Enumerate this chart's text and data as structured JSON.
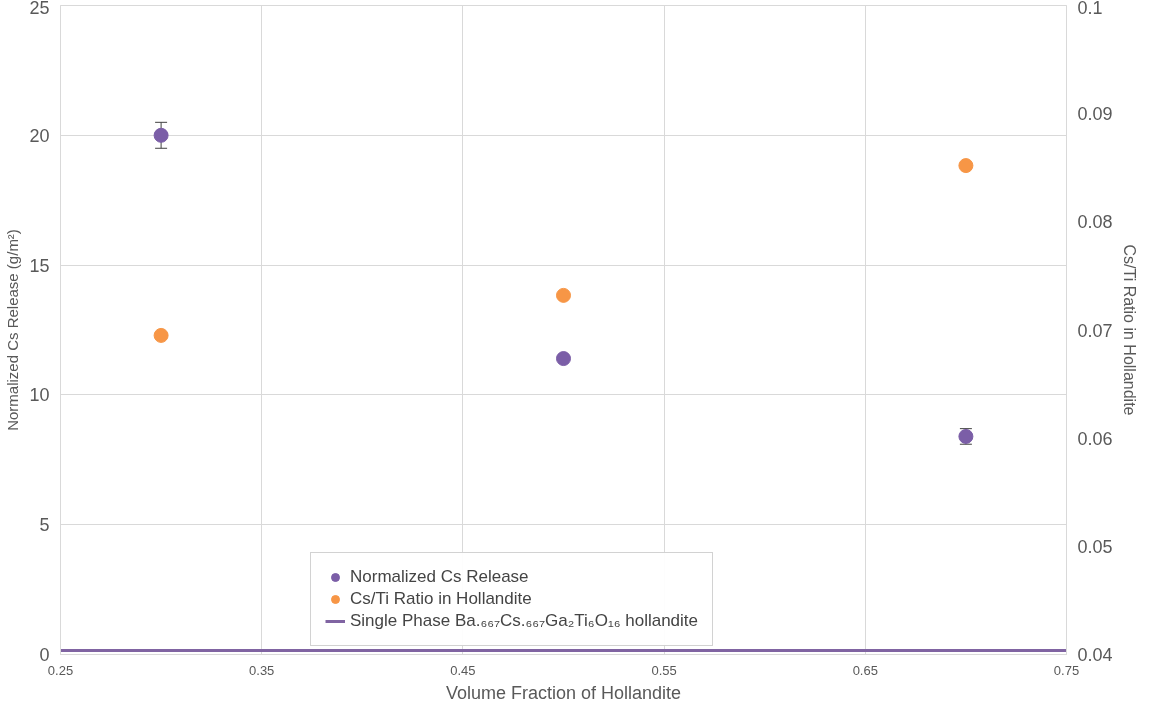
{
  "chart_data": {
    "type": "scatter",
    "xlabel": "Volume Fraction of Hollandite",
    "ylabel": "Normalized Cs Release (g/m²)",
    "y2label": "Cs/Ti Ratio in Hollandite",
    "x": [
      0.3,
      0.5,
      0.7
    ],
    "series": [
      {
        "name": "Normalized Cs Release",
        "color": "#7b5ea7",
        "values": [
          20.0,
          11.4,
          8.4
        ],
        "errors": [
          0.5,
          null,
          0.3
        ]
      },
      {
        "name": "Cs/Ti Ratio in Hollandite",
        "color": "#f79646",
        "values": [
          0.0695,
          0.0732,
          0.0852
        ],
        "axis": "y2"
      },
      {
        "name": "Single Phase Ba.₆₆₇Cs.₆₆₇Ga₂Ti₆O₁₆ hollandite",
        "type": "line",
        "marker": "none",
        "color": "#8064a2",
        "x": [
          0.25,
          0.75
        ],
        "values": [
          0.15,
          0.15
        ]
      }
    ],
    "xlim": [
      0.25,
      0.75
    ],
    "xticks": [
      0.25,
      0.35,
      0.45,
      0.55,
      0.65,
      0.75
    ],
    "ylim": [
      0,
      25
    ],
    "yticks": [
      0,
      5,
      10,
      15,
      20,
      25
    ],
    "y2lim": [
      0.04,
      0.1
    ],
    "y2ticks": [
      0.04,
      0.05,
      0.06,
      0.07,
      0.08,
      0.09,
      0.1
    ],
    "grid": true,
    "legend": "bottom",
    "marker": "circle"
  }
}
